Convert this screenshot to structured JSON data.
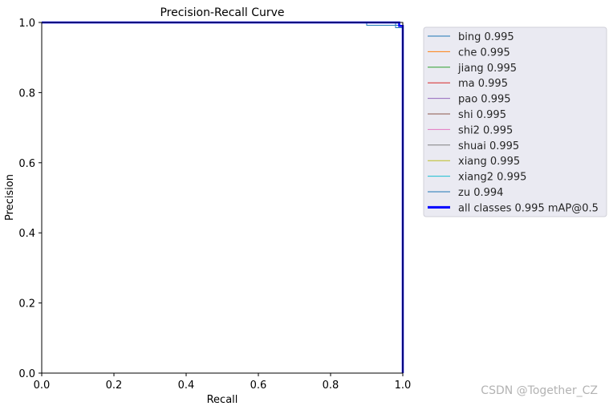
{
  "chart_data": {
    "type": "line",
    "title": "Precision-Recall Curve",
    "xlabel": "Recall",
    "ylabel": "Precision",
    "xlim": [
      0,
      1
    ],
    "ylim": [
      0,
      1
    ],
    "xticks": [
      "0.0",
      "0.2",
      "0.4",
      "0.6",
      "0.8",
      "1.0"
    ],
    "yticks": [
      "0.0",
      "0.2",
      "0.4",
      "0.6",
      "0.8",
      "1.0"
    ],
    "grid": false,
    "legend_position": "outside-right-top",
    "series": [
      {
        "name": "bing",
        "ap": "0.995",
        "label": "bing 0.995",
        "color": "#1f77b4",
        "x": [
          0,
          0.9,
          0.9,
          1.0,
          1.0
        ],
        "y": [
          1.0,
          1.0,
          0.992,
          0.992,
          0.0
        ]
      },
      {
        "name": "che",
        "ap": "0.995",
        "label": "che 0.995",
        "color": "#ff7f0e",
        "x": [
          0,
          1.0,
          1.0
        ],
        "y": [
          1.0,
          1.0,
          0.0
        ]
      },
      {
        "name": "jiang",
        "ap": "0.995",
        "label": "jiang 0.995",
        "color": "#2ca02c",
        "x": [
          0,
          1.0,
          1.0
        ],
        "y": [
          1.0,
          1.0,
          0.0
        ]
      },
      {
        "name": "ma",
        "ap": "0.995",
        "label": "ma 0.995",
        "color": "#d62728",
        "x": [
          0,
          1.0,
          1.0
        ],
        "y": [
          1.0,
          1.0,
          0.0
        ]
      },
      {
        "name": "pao",
        "ap": "0.995",
        "label": "pao 0.995",
        "color": "#9467bd",
        "x": [
          0,
          1.0,
          1.0
        ],
        "y": [
          1.0,
          1.0,
          0.0
        ]
      },
      {
        "name": "shi",
        "ap": "0.995",
        "label": "shi 0.995",
        "color": "#8c564b",
        "x": [
          0,
          1.0,
          1.0
        ],
        "y": [
          1.0,
          1.0,
          0.0
        ]
      },
      {
        "name": "shi2",
        "ap": "0.995",
        "label": "shi2 0.995",
        "color": "#e377c2",
        "x": [
          0,
          1.0,
          1.0
        ],
        "y": [
          1.0,
          1.0,
          0.0
        ]
      },
      {
        "name": "shuai",
        "ap": "0.995",
        "label": "shuai 0.995",
        "color": "#7f7f7f",
        "x": [
          0,
          1.0,
          1.0
        ],
        "y": [
          1.0,
          1.0,
          0.0
        ]
      },
      {
        "name": "xiang",
        "ap": "0.995",
        "label": "xiang 0.995",
        "color": "#bcbd22",
        "x": [
          0,
          1.0,
          1.0
        ],
        "y": [
          1.0,
          1.0,
          0.0
        ]
      },
      {
        "name": "xiang2",
        "ap": "0.995",
        "label": "xiang2 0.995",
        "color": "#17becf",
        "x": [
          0,
          1.0,
          1.0
        ],
        "y": [
          1.0,
          1.0,
          0.0
        ]
      },
      {
        "name": "zu",
        "ap": "0.994",
        "label": "zu 0.994",
        "color": "#1f77b4",
        "x": [
          0,
          0.98,
          0.98,
          1.0,
          1.0
        ],
        "y": [
          1.0,
          1.0,
          0.985,
          0.985,
          0.0
        ]
      },
      {
        "name": "all classes",
        "ap": "0.995",
        "label": "all classes 0.995 mAP@0.5",
        "color": "#0000ff",
        "bold": true,
        "x": [
          0,
          0.99,
          0.99,
          1.0,
          1.0
        ],
        "y": [
          1.0,
          1.0,
          0.99,
          0.99,
          0.0
        ]
      }
    ]
  },
  "watermark": "CSDN @Together_CZ"
}
